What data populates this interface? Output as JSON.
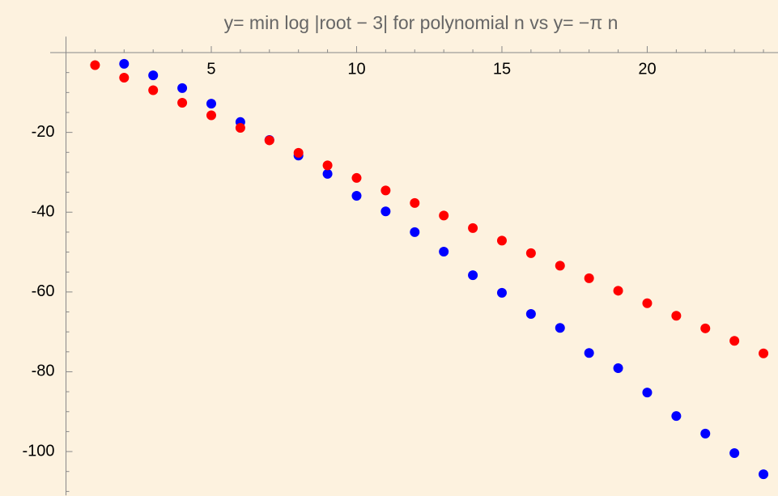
{
  "chart_data": {
    "type": "scatter",
    "title": "y= min log |root − 3| for polynomial n vs y= −π n",
    "x": [
      1,
      2,
      3,
      4,
      5,
      6,
      7,
      8,
      9,
      10,
      11,
      12,
      13,
      14,
      15,
      16,
      17,
      18,
      19,
      20,
      21,
      22,
      23,
      24
    ],
    "series": [
      {
        "name": "min log |root − 3|",
        "color": "#0000ff",
        "values": [
          null,
          -2.8,
          -5.7,
          -8.9,
          -12.8,
          -17.4,
          -21.9,
          -25.8,
          -30.4,
          -35.9,
          -39.8,
          -45.0,
          -49.9,
          -55.8,
          -60.2,
          -65.5,
          -69.0,
          -75.3,
          -79.1,
          -85.2,
          -91.1,
          -95.5,
          -100.4,
          -105.7
        ]
      },
      {
        "name": "−π n",
        "color": "#ff0000",
        "values": [
          -3.14,
          -6.28,
          -9.42,
          -12.57,
          -15.71,
          -18.85,
          -21.99,
          -25.13,
          -28.27,
          -31.42,
          -34.56,
          -37.7,
          -40.84,
          -43.98,
          -47.12,
          -50.27,
          -53.41,
          -56.55,
          -59.69,
          -62.83,
          -65.97,
          -69.12,
          -72.26,
          -75.4
        ]
      }
    ],
    "xlim": [
      0,
      24.5
    ],
    "ylim": [
      -111,
      4
    ],
    "xticks": [
      5,
      10,
      15,
      20
    ],
    "yticks": [
      -20,
      -40,
      -60,
      -80,
      -100
    ],
    "xminorticks": [
      1,
      2,
      3,
      4,
      6,
      7,
      8,
      9,
      11,
      12,
      13,
      14,
      16,
      17,
      18,
      19,
      21,
      22,
      23,
      24
    ],
    "yminorticks": [
      -5,
      -10,
      -15,
      -25,
      -30,
      -35,
      -45,
      -50,
      -55,
      -65,
      -70,
      -75,
      -85,
      -90,
      -95,
      -105,
      -110
    ]
  }
}
